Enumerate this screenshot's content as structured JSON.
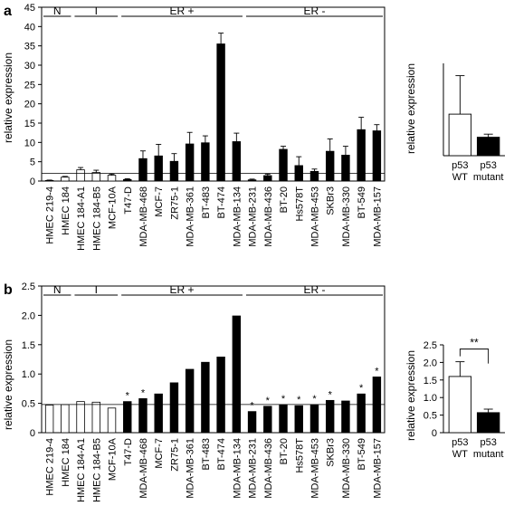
{
  "panels": {
    "a": {
      "label": "a",
      "ylabel": "relative expression",
      "side_ylabel": "relative expression"
    },
    "b": {
      "label": "b",
      "ylabel": "relative expression",
      "side_ylabel": "relative expression"
    }
  },
  "group_labels": [
    "N",
    "I",
    "ER +",
    "ER -"
  ],
  "chart_data": [
    {
      "id": "a-main",
      "type": "bar",
      "categories": [
        "HMEC 219-4",
        "HMEC 184",
        "HMEC 184-A1",
        "HMEC 184-B5",
        "MCF-10A",
        "T47-D",
        "MDA-MB-468",
        "MCF-7",
        "ZR75-1",
        "MDA-MB-361",
        "BT-483",
        "BT-474",
        "MDA-MB-134",
        "MDA-MB-231",
        "MDA-MB-436",
        "BT-20",
        "Hs578T",
        "MDA-MB-453",
        "SKBr3",
        "MDA-MB-330",
        "BT-549",
        "MDA-MB-157"
      ],
      "values": [
        0.15,
        1.0,
        2.9,
        2.2,
        1.5,
        0.4,
        5.8,
        6.5,
        5.1,
        9.6,
        9.9,
        35.5,
        10.2,
        0.3,
        1.4,
        8.2,
        4.0,
        2.5,
        7.7,
        6.7,
        13.3,
        13.0
      ],
      "errors": [
        0.1,
        0.2,
        0.6,
        0.6,
        0.3,
        0.2,
        2.0,
        3.0,
        2.0,
        3.0,
        1.8,
        2.8,
        2.2,
        0.2,
        0.4,
        0.8,
        2.3,
        0.6,
        3.2,
        2.3,
        3.2,
        1.6
      ],
      "fill": [
        "white",
        "white",
        "white",
        "white",
        "white",
        "black",
        "black",
        "black",
        "black",
        "black",
        "black",
        "black",
        "black",
        "black",
        "black",
        "black",
        "black",
        "black",
        "black",
        "black",
        "black",
        "black"
      ],
      "ylim": [
        0,
        45
      ],
      "yticks": [
        "0",
        "5",
        "10",
        "15",
        "20",
        "25",
        "30",
        "35",
        "40",
        "45"
      ],
      "reference_line": 2,
      "groups": [
        {
          "label": "N",
          "from": 0,
          "to": 1
        },
        {
          "label": "I",
          "from": 2,
          "to": 4
        },
        {
          "label": "ER +",
          "from": 5,
          "to": 12
        },
        {
          "label": "ER -",
          "from": 13,
          "to": 21
        }
      ]
    },
    {
      "id": "a-inset",
      "type": "bar",
      "categories": [
        "p53\nWT",
        "p53\nmutant"
      ],
      "values": [
        13.5,
        6.0
      ],
      "errors": [
        12.5,
        1.0
      ],
      "fill": [
        "white",
        "black"
      ],
      "ylim": [
        0,
        30
      ]
    },
    {
      "id": "b-main",
      "type": "bar",
      "categories": [
        "HMEC 219-4",
        "HMEC 184",
        "HMEC 184-A1",
        "HMEC 184-B5",
        "MCF-10A",
        "T47-D",
        "MDA-MB-468",
        "MCF-7",
        "ZR75-1",
        "MDA-MB-361",
        "BT-483",
        "BT-474",
        "MDA-MB-134",
        "MDA-MB-231",
        "MDA-MB-436",
        "BT-20",
        "Hs578T",
        "MDA-MB-453",
        "SKBr3",
        "MDA-MB-330",
        "BT-549",
        "MDA-MB-157"
      ],
      "values": [
        0.47,
        0.48,
        0.53,
        0.52,
        0.42,
        0.53,
        0.58,
        0.66,
        0.85,
        1.08,
        1.2,
        1.29,
        1.99,
        0.36,
        0.45,
        0.48,
        0.46,
        0.48,
        0.55,
        0.54,
        0.66,
        0.95
      ],
      "fill": [
        "white",
        "white",
        "white",
        "white",
        "white",
        "black",
        "black",
        "black",
        "black",
        "black",
        "black",
        "black",
        "black",
        "black",
        "black",
        "black",
        "black",
        "black",
        "black",
        "black",
        "black",
        "black"
      ],
      "stars": [
        false,
        false,
        false,
        false,
        false,
        true,
        true,
        false,
        false,
        false,
        false,
        false,
        false,
        true,
        true,
        true,
        true,
        true,
        true,
        false,
        true,
        true
      ],
      "star_text": "*",
      "ylim": [
        0,
        2.5
      ],
      "yticks": [
        "0",
        "0.5",
        "1.0",
        "1.5",
        "2.0",
        "2.5"
      ],
      "reference_line": 0.48,
      "groups": [
        {
          "label": "N",
          "from": 0,
          "to": 1
        },
        {
          "label": "I",
          "from": 2,
          "to": 4
        },
        {
          "label": "ER +",
          "from": 5,
          "to": 12
        },
        {
          "label": "ER -",
          "from": 13,
          "to": 21
        }
      ]
    },
    {
      "id": "b-inset",
      "type": "bar",
      "categories": [
        "p53\nWT",
        "p53\nmutant"
      ],
      "values": [
        1.6,
        0.57
      ],
      "errors": [
        0.42,
        0.1
      ],
      "fill": [
        "white",
        "black"
      ],
      "ylim": [
        0,
        2.5
      ],
      "yticks": [
        "0",
        "0.5",
        "1.0",
        "1.5",
        "2.0",
        "2.5"
      ],
      "significance": "**"
    }
  ]
}
